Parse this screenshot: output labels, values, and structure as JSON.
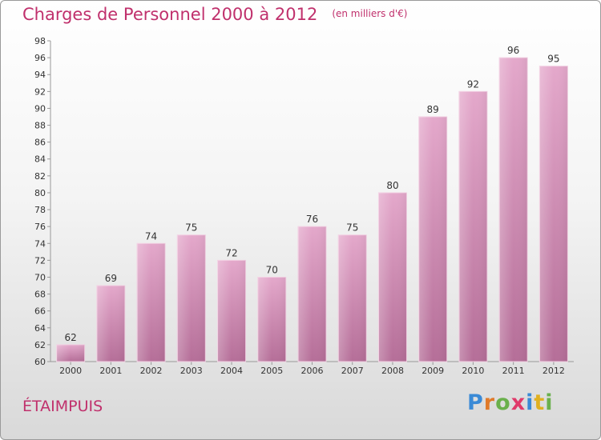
{
  "title": "Charges de Personnel 2000 à 2012",
  "unit": "(en milliers d'€)",
  "place": "ÉTAIMPUIS",
  "logo": {
    "letters": [
      "P",
      "r",
      "o",
      "x",
      "i",
      "t",
      "i"
    ],
    "colors": [
      "#3a8ad6",
      "#e07a2a",
      "#6ab04c",
      "#e03a6a",
      "#3a8ad6",
      "#e0b020",
      "#6ab04c"
    ]
  },
  "colors": {
    "bar": "#d98fba",
    "title": "#c0306c"
  },
  "chart_data": {
    "type": "bar",
    "categories": [
      "2000",
      "2001",
      "2002",
      "2003",
      "2004",
      "2005",
      "2006",
      "2007",
      "2008",
      "2009",
      "2010",
      "2011",
      "2012"
    ],
    "values": [
      62,
      69,
      74,
      75,
      72,
      70,
      76,
      75,
      80,
      89,
      92,
      96,
      95
    ],
    "title": "Charges de Personnel 2000 à 2012",
    "ylim": [
      60,
      98
    ],
    "yticks": [
      60,
      62,
      64,
      66,
      68,
      70,
      72,
      74,
      76,
      78,
      80,
      82,
      84,
      86,
      88,
      90,
      92,
      94,
      96,
      98
    ],
    "grid": false
  }
}
